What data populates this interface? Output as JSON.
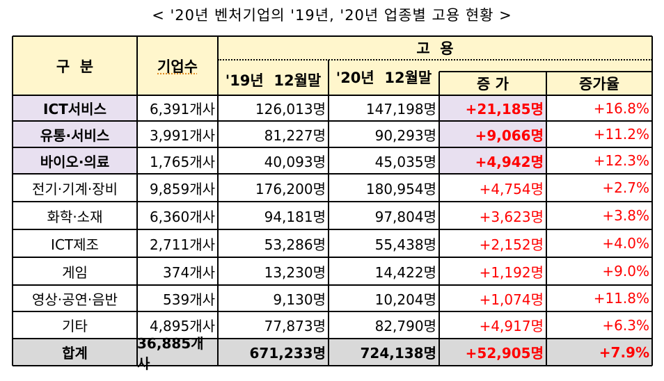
{
  "title": "< '20년 벤처기업의 '19년, '20년 업종별 고용 현황 >",
  "header": {
    "category": "구  분",
    "companies": "기업수",
    "employment": "고  용",
    "y2019": "'19년  12월말",
    "y2020": "'20년  12월말",
    "increase": "증 가",
    "increase_rate": "증가율"
  },
  "rows": [
    {
      "category": "ICT서비스",
      "companies": "6,391개사",
      "y2019": "126,013명",
      "y2020": "147,198명",
      "increase": "+21,185명",
      "rate": "+16.8%",
      "highlight": true
    },
    {
      "category": "유통·서비스",
      "companies": "3,991개사",
      "y2019": "81,227명",
      "y2020": "90,293명",
      "increase": "+9,066명",
      "rate": "+11.2%",
      "highlight": true
    },
    {
      "category": "바이오·의료",
      "companies": "1,765개사",
      "y2019": "40,093명",
      "y2020": "45,035명",
      "increase": "+4,942명",
      "rate": "+12.3%",
      "highlight": true
    },
    {
      "category": "전기·기계·장비",
      "companies": "9,859개사",
      "y2019": "176,200명",
      "y2020": "180,954명",
      "increase": "+4,754명",
      "rate": "+2.7%",
      "highlight": false
    },
    {
      "category": "화학·소재",
      "companies": "6,360개사",
      "y2019": "94,181명",
      "y2020": "97,804명",
      "increase": "+3,623명",
      "rate": "+3.8%",
      "highlight": false
    },
    {
      "category": "ICT제조",
      "companies": "2,711개사",
      "y2019": "53,286명",
      "y2020": "55,438명",
      "increase": "+2,152명",
      "rate": "+4.0%",
      "highlight": false
    },
    {
      "category": "게임",
      "companies": "374개사",
      "y2019": "13,230명",
      "y2020": "14,422명",
      "increase": "+1,192명",
      "rate": "+9.0%",
      "highlight": false
    },
    {
      "category": "영상·공연·음반",
      "companies": "539개사",
      "y2019": "9,130명",
      "y2020": "10,204명",
      "increase": "+1,074명",
      "rate": "+11.8%",
      "highlight": false
    },
    {
      "category": "기타",
      "companies": "4,895개사",
      "y2019": "77,873명",
      "y2020": "82,790명",
      "increase": "+4,917명",
      "rate": "+6.3%",
      "highlight": false
    }
  ],
  "total": {
    "category": "합계",
    "companies": "36,885개사",
    "y2019": "671,233명",
    "y2020": "724,138명",
    "increase": "+52,905명",
    "rate": "+7.9%"
  },
  "colors": {
    "header_bg": "#fff6cc",
    "highlight_bg": "#e8e0f0",
    "total_bg": "#d9d9d9",
    "increase_text": "#ff0000",
    "border": "#000000"
  }
}
